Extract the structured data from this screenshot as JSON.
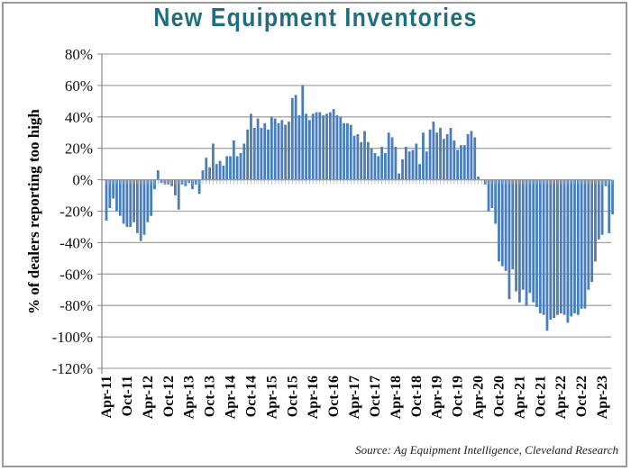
{
  "chart_data": {
    "type": "bar",
    "title": "New Equipment Inventories",
    "xlabel": "",
    "ylabel": "% of dealers reporting too high",
    "source": "Source: Ag Equipment Intelligence, Cleveland Research",
    "ylim": [
      -120,
      80
    ],
    "yticks": [
      80,
      60,
      40,
      20,
      0,
      -20,
      -40,
      -60,
      -80,
      -100,
      -120
    ],
    "ytick_labels": [
      "80%",
      "60%",
      "40%",
      "20%",
      "0%",
      "-20%",
      "-40%",
      "-60%",
      "-80%",
      "-100%",
      "-120%"
    ],
    "grid": true,
    "bar_color": "#4a7ebb",
    "start_month": "Apr-11",
    "frequency": "monthly",
    "xtick_labels": [
      "Apr-11",
      "Oct-11",
      "Apr-12",
      "Oct-12",
      "Apr-13",
      "Oct-13",
      "Apr-14",
      "Oct-14",
      "Apr-15",
      "Oct-15",
      "Apr-16",
      "Oct-16",
      "Apr-17",
      "Oct-17",
      "Apr-18",
      "Oct-18",
      "Apr-19",
      "Oct-19",
      "Apr-20",
      "Oct-20",
      "Apr-21",
      "Oct-21",
      "Apr-22",
      "Oct-22",
      "Apr-23"
    ],
    "xtick_every_months": 6,
    "values": [
      -26,
      -18,
      -12,
      -20,
      -23,
      -28,
      -30,
      -30,
      -27,
      -34,
      -39,
      -35,
      -27,
      -23,
      -6,
      6,
      -2,
      -3,
      -3,
      -4,
      -10,
      -19,
      -3,
      -4,
      -2,
      -6,
      -3,
      -9,
      6,
      14,
      8,
      23,
      10,
      12,
      9,
      15,
      15,
      25,
      15,
      17,
      23,
      32,
      42,
      33,
      39,
      33,
      36,
      32,
      40,
      39,
      36,
      38,
      35,
      37,
      52,
      54,
      41,
      60,
      42,
      38,
      42,
      43,
      43,
      41,
      42,
      43,
      45,
      41,
      40,
      36,
      36,
      35,
      28,
      29,
      24,
      31,
      24,
      20,
      17,
      15,
      21,
      17,
      30,
      27,
      21,
      4,
      13,
      21,
      18,
      19,
      23,
      10,
      30,
      18,
      32,
      37,
      30,
      33,
      26,
      29,
      33,
      25,
      19,
      22,
      22,
      29,
      31,
      27,
      2,
      0,
      -3,
      -20,
      -18,
      -28,
      -52,
      -55,
      -58,
      -76,
      -57,
      -71,
      -78,
      -70,
      -80,
      -72,
      -78,
      -81,
      -85,
      -86,
      -96,
      -89,
      -88,
      -86,
      -85,
      -86,
      -91,
      -87,
      -85,
      -86,
      -82,
      -82,
      -70,
      -65,
      -52,
      -38,
      -35,
      -4,
      -34,
      -22
    ]
  }
}
